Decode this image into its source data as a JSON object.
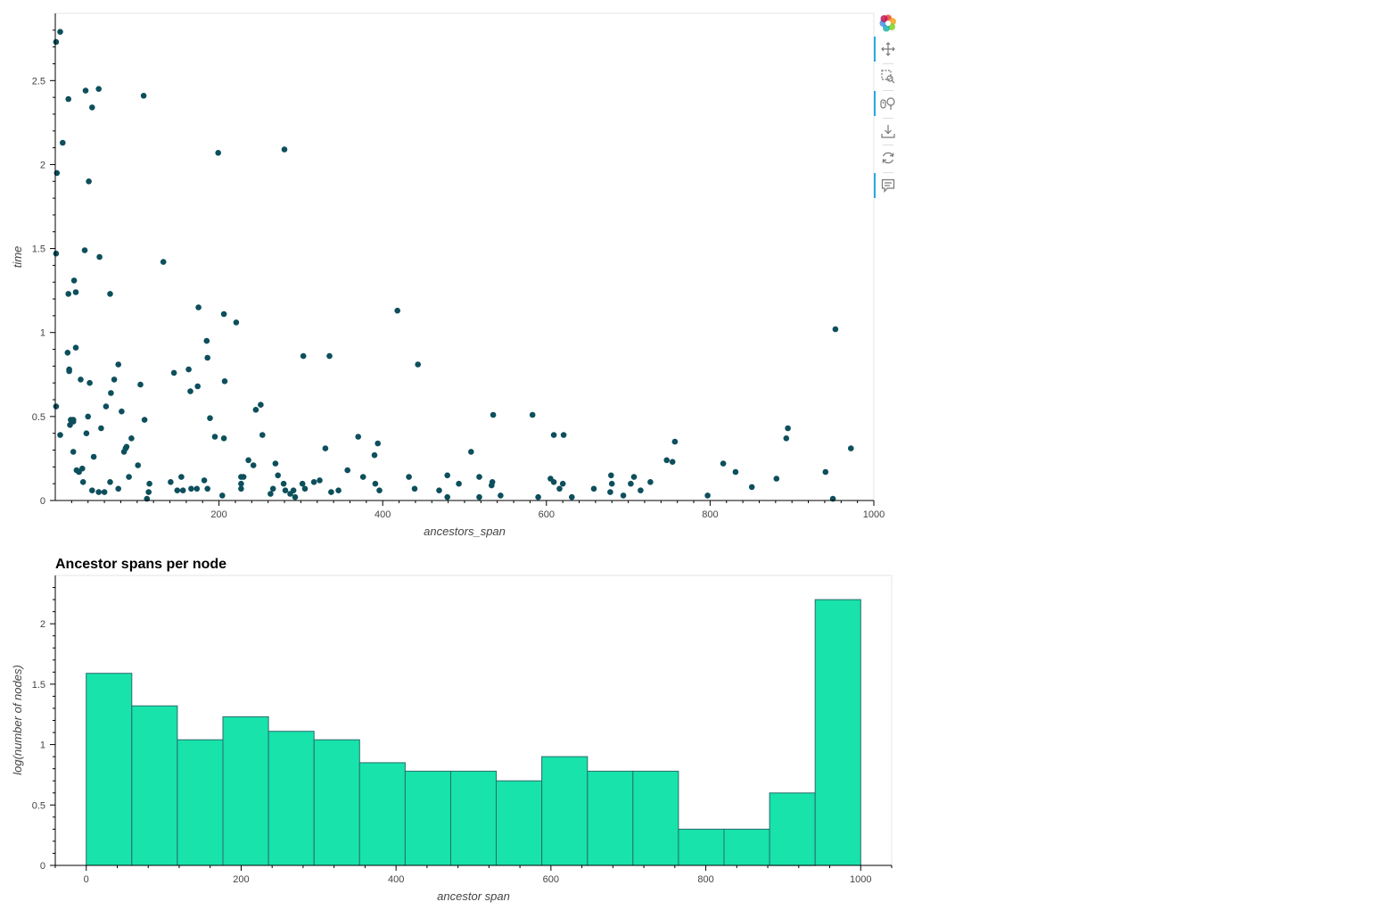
{
  "colors": {
    "scatter_point": "#0d4f5c",
    "histogram_fill": "#17e3ab",
    "histogram_stroke": "#2a6c6c",
    "axis": "#000000",
    "frame": "#e5e5e5"
  },
  "toolbar": {
    "tools": [
      {
        "name": "bokeh-logo",
        "icon": "bokeh-logo-icon",
        "active": false
      },
      {
        "name": "pan-tool",
        "icon": "pan-icon",
        "active": true
      },
      {
        "name": "box-zoom-tool",
        "icon": "box-zoom-icon",
        "active": false
      },
      {
        "name": "wheel-zoom-tool",
        "icon": "wheel-zoom-icon",
        "active": true
      },
      {
        "name": "save-tool",
        "icon": "save-icon",
        "active": false
      },
      {
        "name": "reset-tool",
        "icon": "reset-icon",
        "active": false
      },
      {
        "name": "hover-tool",
        "icon": "hover-icon",
        "active": true
      }
    ]
  },
  "chart_data": [
    {
      "type": "scatter",
      "title": "",
      "xlabel": "ancestors_span",
      "ylabel": "time",
      "xlim": [
        0,
        1000
      ],
      "ylim": [
        0,
        2.9
      ],
      "x_ticks": [
        200,
        400,
        600,
        800,
        1000
      ],
      "x_tick_labels": [
        "200",
        "400",
        "600",
        "800",
        "1000"
      ],
      "y_ticks": [
        0,
        0.5,
        1,
        1.5,
        2,
        2.5
      ],
      "y_tick_labels": [
        "0",
        "0.5",
        "1",
        "1.5",
        "2",
        "2.5"
      ],
      "points": [
        [
          1,
          2.73
        ],
        [
          6,
          2.79
        ],
        [
          16,
          2.39
        ],
        [
          37,
          2.44
        ],
        [
          53,
          2.45
        ],
        [
          45,
          2.34
        ],
        [
          108,
          2.41
        ],
        [
          9,
          2.13
        ],
        [
          2,
          1.95
        ],
        [
          41,
          1.9
        ],
        [
          199,
          2.07
        ],
        [
          280,
          2.09
        ],
        [
          1,
          1.47
        ],
        [
          36,
          1.49
        ],
        [
          54,
          1.45
        ],
        [
          132,
          1.42
        ],
        [
          23,
          1.31
        ],
        [
          25,
          1.24
        ],
        [
          16,
          1.23
        ],
        [
          67,
          1.23
        ],
        [
          175,
          1.15
        ],
        [
          206,
          1.11
        ],
        [
          221,
          1.06
        ],
        [
          418,
          1.13
        ],
        [
          953,
          1.02
        ],
        [
          25,
          0.91
        ],
        [
          185,
          0.95
        ],
        [
          15,
          0.88
        ],
        [
          17,
          0.78
        ],
        [
          17,
          0.77
        ],
        [
          186,
          0.85
        ],
        [
          303,
          0.86
        ],
        [
          335,
          0.86
        ],
        [
          77,
          0.81
        ],
        [
          443,
          0.81
        ],
        [
          31,
          0.72
        ],
        [
          42,
          0.7
        ],
        [
          72,
          0.72
        ],
        [
          104,
          0.69
        ],
        [
          145,
          0.76
        ],
        [
          163,
          0.78
        ],
        [
          174,
          0.68
        ],
        [
          207,
          0.71
        ],
        [
          68,
          0.64
        ],
        [
          165,
          0.65
        ],
        [
          1,
          0.56
        ],
        [
          62,
          0.56
        ],
        [
          81,
          0.53
        ],
        [
          189,
          0.49
        ],
        [
          245,
          0.54
        ],
        [
          251,
          0.57
        ],
        [
          535,
          0.51
        ],
        [
          583,
          0.51
        ],
        [
          109,
          0.48
        ],
        [
          40,
          0.5
        ],
        [
          19,
          0.48
        ],
        [
          22,
          0.48
        ],
        [
          18,
          0.45
        ],
        [
          22,
          0.47
        ],
        [
          56,
          0.43
        ],
        [
          6,
          0.39
        ],
        [
          38,
          0.4
        ],
        [
          253,
          0.39
        ],
        [
          370,
          0.38
        ],
        [
          609,
          0.39
        ],
        [
          621,
          0.39
        ],
        [
          895,
          0.43
        ],
        [
          195,
          0.38
        ],
        [
          206,
          0.37
        ],
        [
          93,
          0.37
        ],
        [
          893,
          0.37
        ],
        [
          394,
          0.34
        ],
        [
          757,
          0.35
        ],
        [
          972,
          0.31
        ],
        [
          330,
          0.31
        ],
        [
          22,
          0.29
        ],
        [
          84,
          0.29
        ],
        [
          86,
          0.31
        ],
        [
          87,
          0.32
        ],
        [
          47,
          0.26
        ],
        [
          508,
          0.29
        ],
        [
          390,
          0.27
        ],
        [
          747,
          0.24
        ],
        [
          754,
          0.23
        ],
        [
          236,
          0.24
        ],
        [
          242,
          0.21
        ],
        [
          269,
          0.22
        ],
        [
          816,
          0.22
        ],
        [
          101,
          0.21
        ],
        [
          26,
          0.18
        ],
        [
          29,
          0.17
        ],
        [
          33,
          0.19
        ],
        [
          357,
          0.18
        ],
        [
          831,
          0.17
        ],
        [
          941,
          0.17
        ],
        [
          90,
          0.14
        ],
        [
          154,
          0.14
        ],
        [
          227,
          0.14
        ],
        [
          230,
          0.14
        ],
        [
          272,
          0.15
        ],
        [
          376,
          0.14
        ],
        [
          432,
          0.14
        ],
        [
          479,
          0.15
        ],
        [
          518,
          0.14
        ],
        [
          679,
          0.15
        ],
        [
          707,
          0.14
        ],
        [
          881,
          0.13
        ],
        [
          605,
          0.13
        ],
        [
          34,
          0.11
        ],
        [
          67,
          0.11
        ],
        [
          141,
          0.11
        ],
        [
          182,
          0.12
        ],
        [
          316,
          0.11
        ],
        [
          323,
          0.12
        ],
        [
          391,
          0.1
        ],
        [
          534,
          0.11
        ],
        [
          609,
          0.11
        ],
        [
          620,
          0.1
        ],
        [
          680,
          0.1
        ],
        [
          703,
          0.1
        ],
        [
          727,
          0.11
        ],
        [
          227,
          0.1
        ],
        [
          279,
          0.1
        ],
        [
          302,
          0.1
        ],
        [
          493,
          0.1
        ],
        [
          115,
          0.1
        ],
        [
          77,
          0.07
        ],
        [
          45,
          0.06
        ],
        [
          53,
          0.05
        ],
        [
          60,
          0.05
        ],
        [
          114,
          0.05
        ],
        [
          149,
          0.06
        ],
        [
          156,
          0.06
        ],
        [
          166,
          0.07
        ],
        [
          173,
          0.07
        ],
        [
          186,
          0.07
        ],
        [
          227,
          0.07
        ],
        [
          266,
          0.07
        ],
        [
          281,
          0.06
        ],
        [
          291,
          0.06
        ],
        [
          305,
          0.07
        ],
        [
          337,
          0.05
        ],
        [
          346,
          0.06
        ],
        [
          396,
          0.06
        ],
        [
          439,
          0.07
        ],
        [
          469,
          0.06
        ],
        [
          533,
          0.09
        ],
        [
          616,
          0.07
        ],
        [
          658,
          0.07
        ],
        [
          678,
          0.05
        ],
        [
          715,
          0.06
        ],
        [
          851,
          0.08
        ],
        [
          263,
          0.04
        ],
        [
          287,
          0.04
        ],
        [
          293,
          0.02
        ],
        [
          204,
          0.03
        ],
        [
          112,
          0.01
        ],
        [
          479,
          0.02
        ],
        [
          518,
          0.02
        ],
        [
          544,
          0.03
        ],
        [
          590,
          0.02
        ],
        [
          631,
          0.02
        ],
        [
          694,
          0.03
        ],
        [
          797,
          0.03
        ],
        [
          950,
          0.01
        ]
      ]
    },
    {
      "type": "bar",
      "title": "Ancestor spans per node",
      "xlabel": "ancestor span",
      "ylabel": "log(number of nodes)",
      "xlim": [
        -40,
        1040
      ],
      "ylim": [
        0,
        2.4
      ],
      "x_ticks": [
        0,
        200,
        400,
        600,
        800,
        1000
      ],
      "x_tick_labels": [
        "0",
        "200",
        "400",
        "600",
        "800",
        "1000"
      ],
      "y_ticks": [
        0,
        0.5,
        1,
        1.5,
        2
      ],
      "y_tick_labels": [
        "0",
        "0.5",
        "1",
        "1.5",
        "2"
      ],
      "bin_edges": [
        0,
        58.8,
        117.6,
        176.5,
        235.3,
        294.1,
        352.9,
        411.8,
        470.6,
        529.4,
        588.2,
        647.1,
        705.9,
        764.7,
        823.5,
        882.4,
        941.2,
        1000
      ],
      "values": [
        1.59,
        1.32,
        1.04,
        1.23,
        1.11,
        1.04,
        0.85,
        0.78,
        0.78,
        0.7,
        0.9,
        0.78,
        0.78,
        0.3,
        0.3,
        0.6,
        2.2
      ]
    }
  ]
}
